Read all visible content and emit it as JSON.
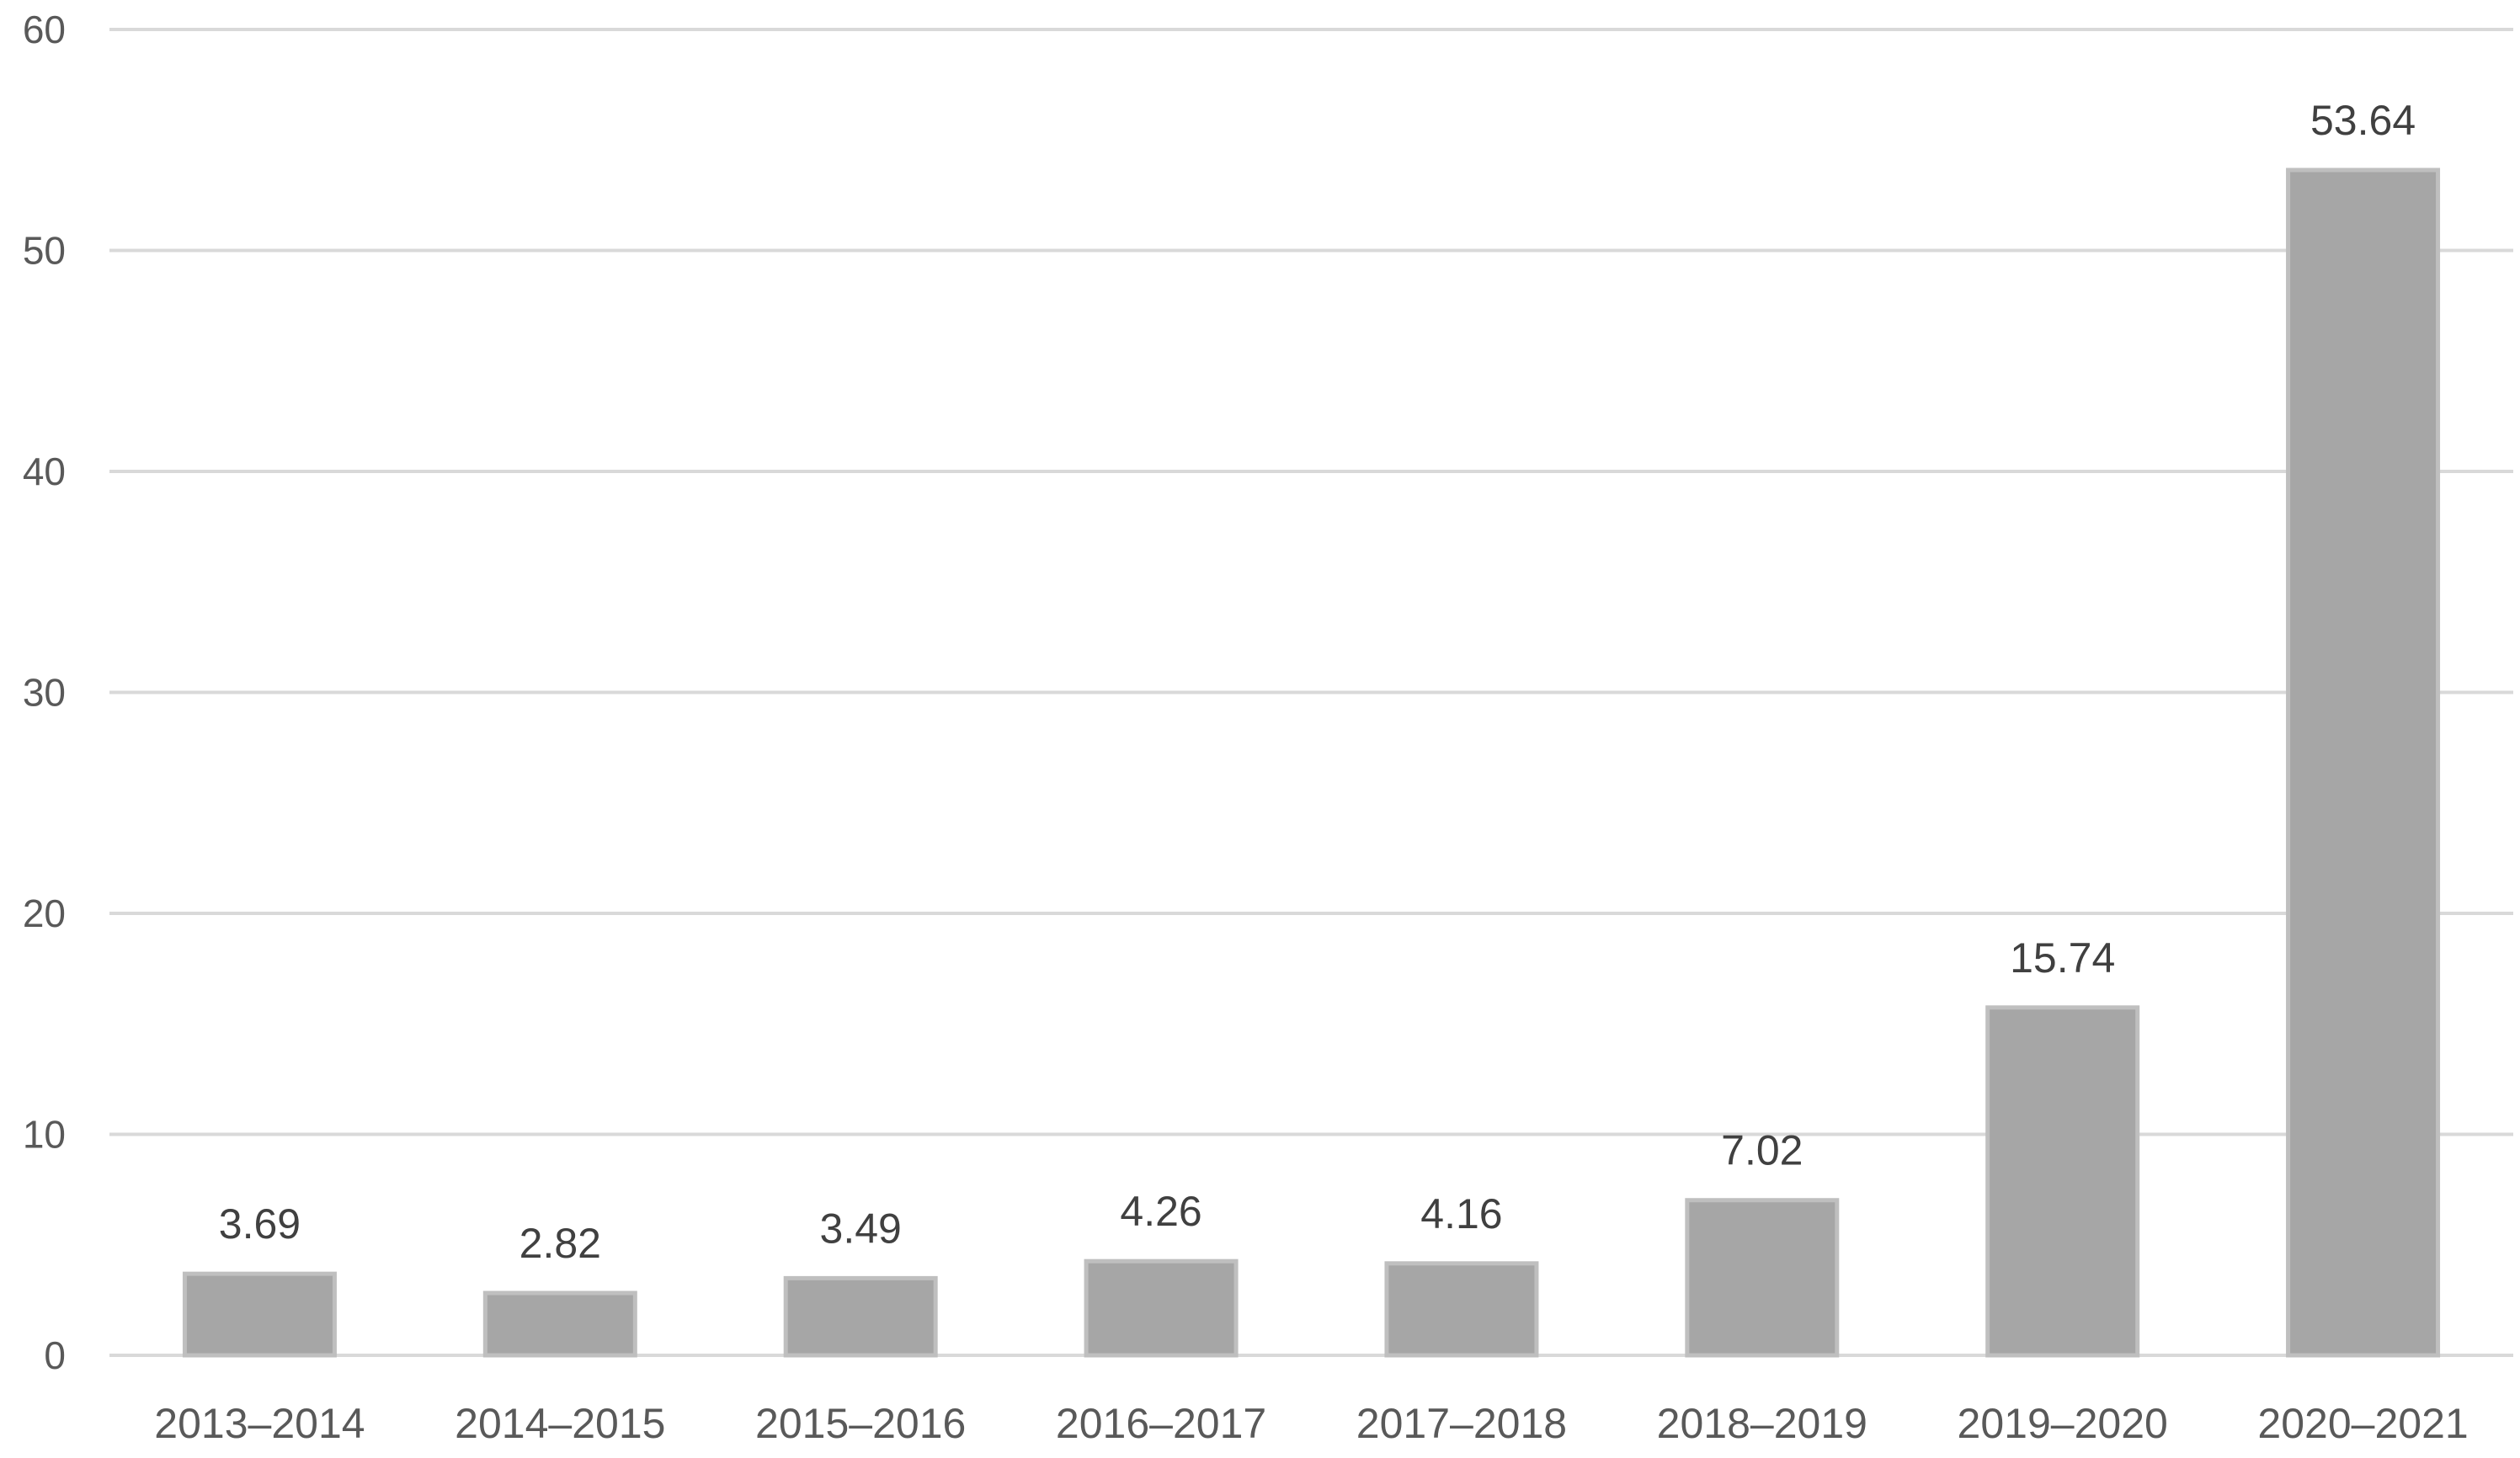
{
  "chart_data": {
    "type": "bar",
    "categories": [
      "2013–2014",
      "2014–2015",
      "2015–2016",
      "2016–2017",
      "2017–2018",
      "2018–2019",
      "2019–2020",
      "2020–2021"
    ],
    "values": [
      3.69,
      2.82,
      3.49,
      4.26,
      4.16,
      7.02,
      15.74,
      53.64
    ],
    "data_labels": [
      "3.69",
      "2.82",
      "3.49",
      "4.26",
      "4.16",
      "7.02",
      "15.74",
      "53.64"
    ],
    "title": "",
    "xlabel": "",
    "ylabel": "",
    "ylim": [
      0,
      60
    ],
    "yticks": [
      0,
      10,
      20,
      30,
      40,
      50,
      60
    ],
    "grid": true,
    "legend": "none",
    "bar_color": "#a6a6a6"
  }
}
